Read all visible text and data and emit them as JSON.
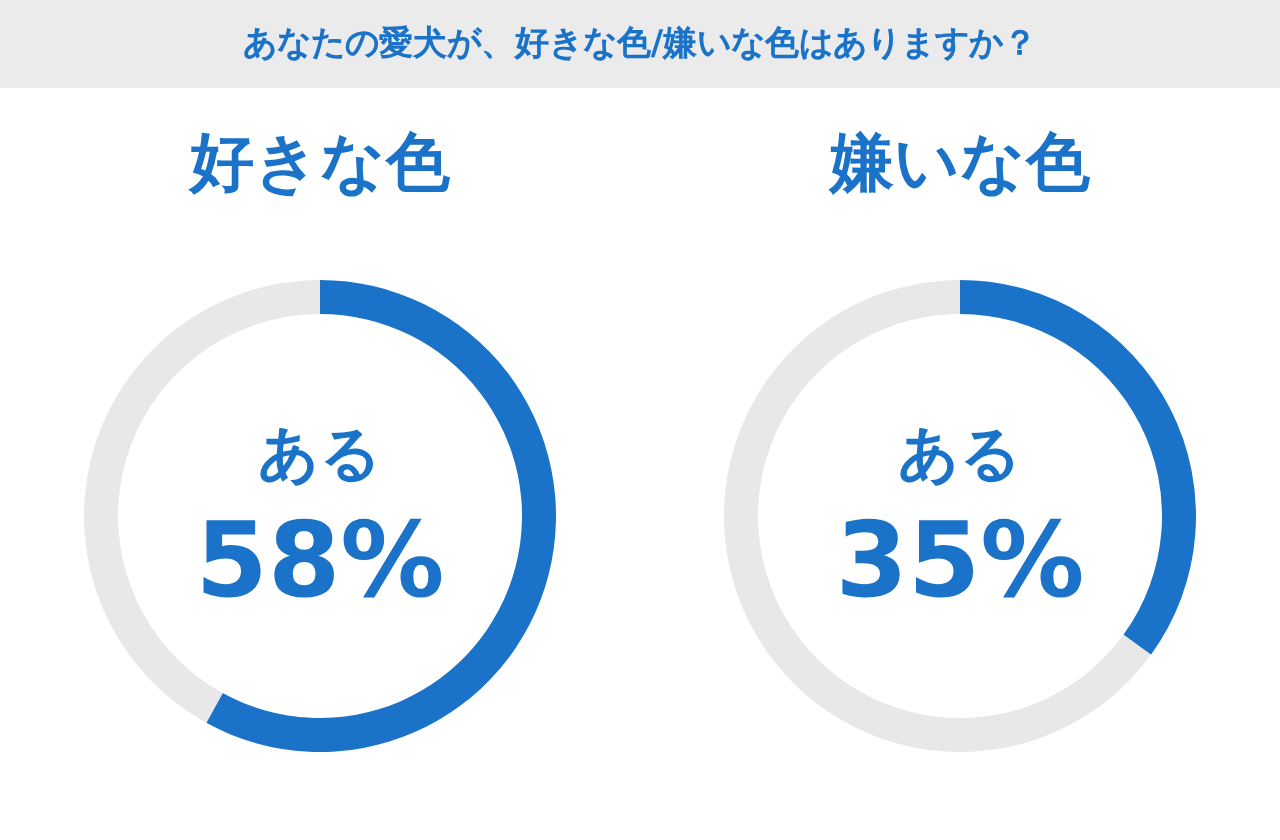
{
  "chart_data": [
    {
      "type": "other",
      "title": "あなたの愛犬が、好きな色/嫌いな色はありますか？"
    },
    {
      "type": "donut",
      "title": "好きな色",
      "categories": [
        "ある",
        null
      ],
      "values": [
        58,
        42
      ],
      "colors": [
        "#1a73c8",
        "#e8e8e8"
      ],
      "value_labels": [
        "58%",
        null
      ],
      "legend": false
    },
    {
      "type": "donut",
      "title": "嫌いな色",
      "categories": [
        "ある",
        null
      ],
      "values": [
        35,
        65
      ],
      "colors": [
        "#1a73c8",
        "#e8e8e8"
      ],
      "value_labels": [
        "35%",
        null
      ],
      "legend": false
    }
  ]
}
